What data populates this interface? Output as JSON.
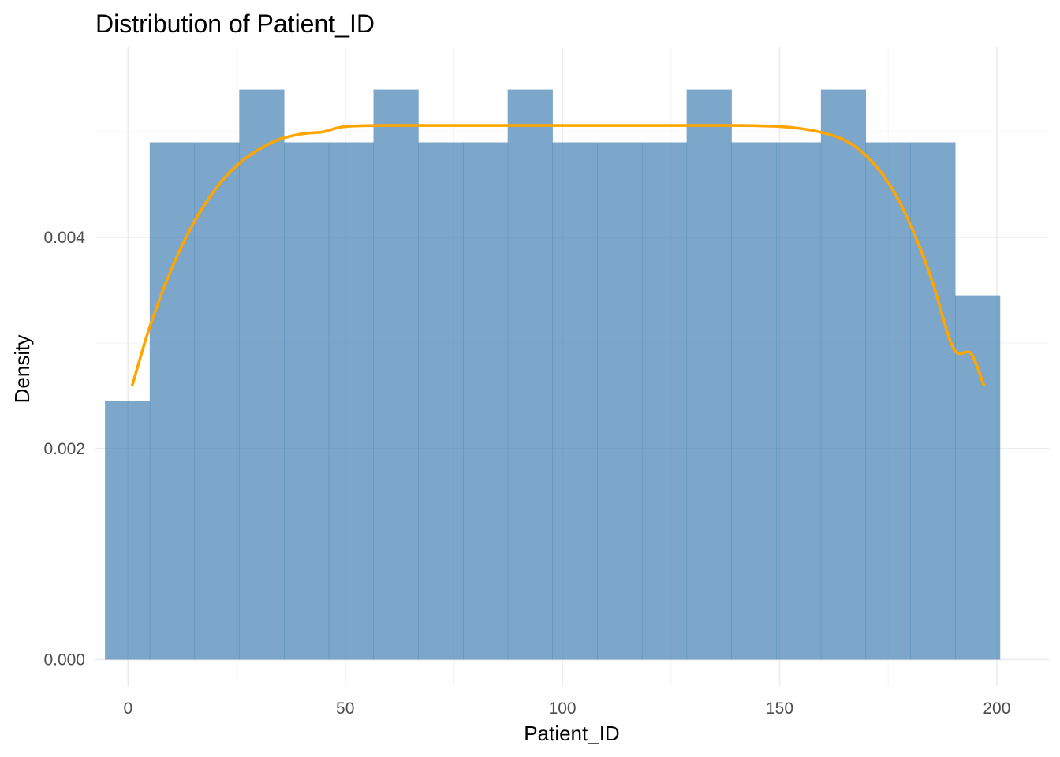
{
  "chart_data": {
    "type": "bar",
    "title": "Distribution of Patient_ID",
    "xlabel": "Patient_ID",
    "ylabel": "Density",
    "xlim": [
      -7.5,
      212
    ],
    "ylim": [
      -0.00025,
      0.0058
    ],
    "x_ticks": [
      0,
      50,
      100,
      150,
      200
    ],
    "y_ticks": [
      0.0,
      0.002,
      0.004
    ],
    "x_tick_labels": [
      "0",
      "50",
      "100",
      "150",
      "200"
    ],
    "y_tick_labels": [
      "0.000",
      "0.002",
      "0.004"
    ],
    "grid": true,
    "legend": "none",
    "bins": {
      "edges": [
        -5.3,
        5.0,
        15.3,
        25.6,
        35.9,
        46.2,
        56.5,
        66.8,
        77.1,
        87.4,
        97.7,
        108.0,
        118.3,
        128.6,
        138.9,
        149.2,
        159.5,
        169.8,
        180.1,
        190.4,
        200.7
      ],
      "values": [
        0.00245,
        0.0049,
        0.0049,
        0.0054,
        0.0049,
        0.0049,
        0.0054,
        0.0049,
        0.0049,
        0.0054,
        0.0049,
        0.0049,
        0.0049,
        0.0054,
        0.0049,
        0.0049,
        0.0054,
        0.0049,
        0.0049,
        0.00345
      ]
    },
    "density_curve": {
      "x": [
        1,
        5,
        10,
        15,
        20,
        25,
        30,
        35,
        40,
        45,
        50,
        60,
        80,
        100,
        120,
        140,
        150,
        155,
        160,
        165,
        170,
        175,
        180,
        185,
        190,
        194,
        197
      ],
      "y": [
        0.0026,
        0.00315,
        0.0037,
        0.00413,
        0.00445,
        0.00468,
        0.00483,
        0.00493,
        0.00498,
        0.005,
        0.00505,
        0.00506,
        0.00506,
        0.00506,
        0.00506,
        0.00506,
        0.00505,
        0.00503,
        0.00499,
        0.00492,
        0.00477,
        0.00452,
        0.00413,
        0.0036,
        0.00295,
        0.0029,
        0.0026
      ]
    },
    "colors": {
      "bars": "#4682b4",
      "bar_opacity": 0.7,
      "curve": "#ffa500"
    }
  }
}
